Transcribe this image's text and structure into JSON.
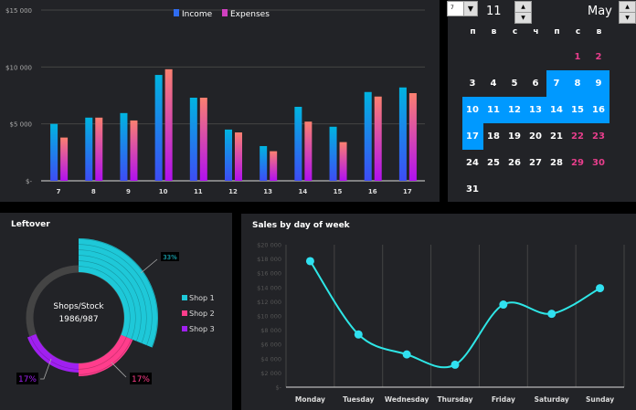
{
  "colors": {
    "panel": "#222327",
    "income_top": "#00b4e0",
    "income_bottom": "#3d4cf5",
    "expense_top": "#fb8070",
    "expense_bottom": "#b010f0",
    "highlight": "#0099ff",
    "weekend": "#e83e8c",
    "line": "#2ee6e6",
    "shop1": "#1ec8d8",
    "shop2": "#ff3d8c",
    "shop3": "#a020f0"
  },
  "bar_chart": {
    "chart_data": {
      "type": "bar",
      "categories": [
        "7",
        "8",
        "9",
        "10",
        "11",
        "12",
        "13",
        "14",
        "15",
        "16",
        "17"
      ],
      "series": [
        {
          "name": "Income",
          "values": [
            5000,
            5550,
            5950,
            9300,
            7300,
            4500,
            3050,
            6500,
            4750,
            7800,
            8200
          ]
        },
        {
          "name": "Expenses",
          "values": [
            3800,
            5550,
            5300,
            9800,
            7300,
            4250,
            2600,
            5200,
            3400,
            7400,
            7700
          ]
        }
      ],
      "ylim": [
        0,
        15000
      ],
      "yticks": [
        "$-",
        "$5 000",
        "$10 000",
        "$15 000"
      ],
      "grid": true,
      "legend": "top"
    }
  },
  "calendar": {
    "dropdown_value": "7",
    "day": "11",
    "month": "May",
    "weekdays": [
      "п",
      "в",
      "с",
      "ч",
      "п",
      "с",
      "в"
    ],
    "first_offset": 5,
    "days": 31,
    "highlight_from": 7,
    "highlight_to": 17
  },
  "donut": {
    "title": "Leftover",
    "center_line1": "Shops/Stock",
    "center_line2": "1986/987",
    "chart_data": {
      "type": "pie",
      "series": [
        {
          "name": "Shop 1",
          "value": 33,
          "label": "33%"
        },
        {
          "name": "Shop 2",
          "value": 17,
          "label": "17%"
        },
        {
          "name": "Shop 3",
          "value": 17,
          "label": "17%"
        }
      ]
    }
  },
  "line_chart": {
    "title": "Sales by day of week",
    "chart_data": {
      "type": "line",
      "categories": [
        "Monday",
        "Tuesday",
        "Wednesday",
        "Thursday",
        "Friday",
        "Saturday",
        "Sunday"
      ],
      "values": [
        17700,
        7400,
        4600,
        3150,
        11600,
        10300,
        13900
      ],
      "ylim": [
        0,
        20000
      ],
      "yticks": [
        "$-",
        "$2 000",
        "$4 000",
        "$6 000",
        "$8 000",
        "$10 000",
        "$12 000",
        "$14 000",
        "$16 000",
        "$18 000",
        "$20 000"
      ],
      "grid": "vertical"
    }
  }
}
